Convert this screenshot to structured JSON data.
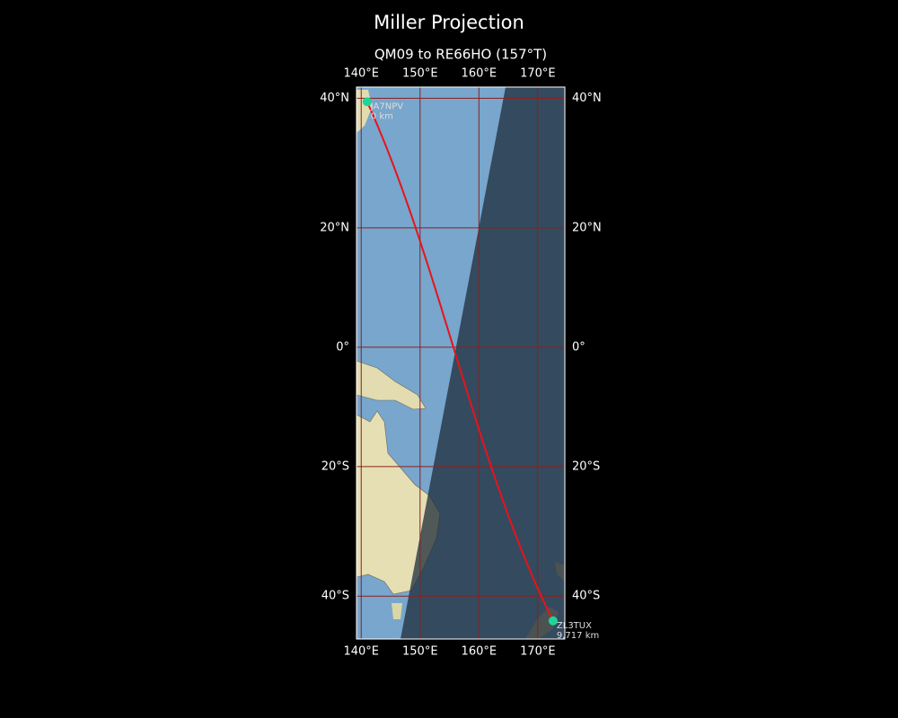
{
  "title": "Miller Projection",
  "map": {
    "subtitle": "QM09 to RE66HO (157°T)",
    "projection": "miller",
    "lonlim": [
      139.2,
      174.6
    ],
    "latlim": [
      -46,
      41.6
    ],
    "lon_ticks": [
      {
        "value": 140,
        "label": "140°E"
      },
      {
        "value": 150,
        "label": "150°E"
      },
      {
        "value": 160,
        "label": "160°E"
      },
      {
        "value": 170,
        "label": "170°E"
      }
    ],
    "lat_ticks": [
      {
        "value": 40,
        "label": "40°N"
      },
      {
        "value": 20,
        "label": "20°N"
      },
      {
        "value": 0,
        "label": "0°"
      },
      {
        "value": -20,
        "label": "20°S"
      },
      {
        "value": -40,
        "label": "40°S"
      }
    ],
    "stations": [
      {
        "name": "JA7NPV",
        "distance": "0 km",
        "lon": 141,
        "lat": 39.5
      },
      {
        "name": "ZL3TUX",
        "distance": "9,717 km",
        "lon": 172.6,
        "lat": -43.5
      }
    ],
    "path_color": "#e8131b",
    "station_color": "#1fd49a",
    "grid_color": "#8b2020"
  }
}
